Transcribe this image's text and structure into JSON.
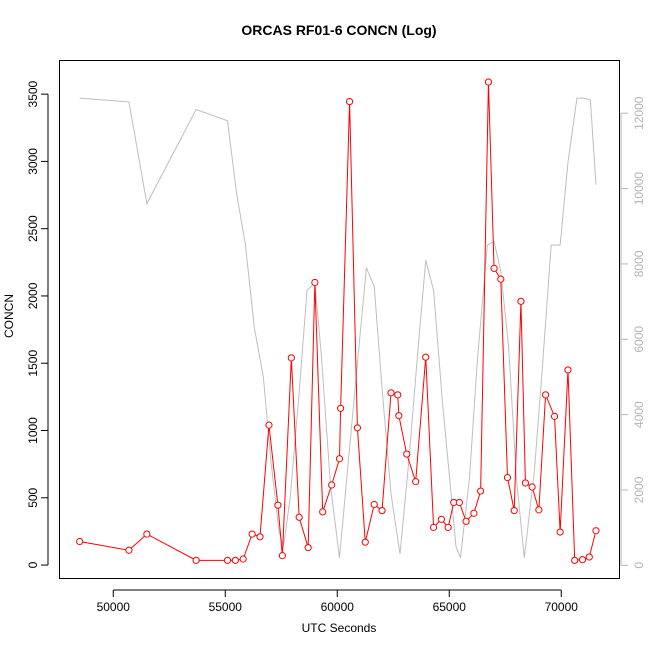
{
  "chart_data": {
    "type": "line",
    "title": "ORCAS RF01-6 CONCN (Log)",
    "xlabel": "UTC Seconds",
    "ylabel": "CONCN",
    "xlim": [
      47600,
      72600
    ],
    "ylim": [
      -100,
      3750
    ],
    "y2lim": [
      -350,
      13400
    ],
    "grid": false,
    "x_ticks": [
      50000,
      55000,
      60000,
      65000,
      70000
    ],
    "y_ticks": [
      0,
      500,
      1000,
      1500,
      2000,
      2500,
      3000,
      3500
    ],
    "y2_ticks": [
      0,
      2000,
      4000,
      6000,
      8000,
      10000,
      12000
    ],
    "colors": {
      "primary": "#ff0000",
      "secondary": "#bebebe",
      "axis": "#000000",
      "axis_right": "#b4b4b4"
    },
    "series": [
      {
        "axis": "left",
        "color": "#ff0000",
        "marker": "open-circle",
        "points": [
          [
            48500,
            175
          ],
          [
            50700,
            110
          ],
          [
            51500,
            230
          ],
          [
            53700,
            35
          ],
          [
            55100,
            35
          ],
          [
            55450,
            35
          ],
          [
            55800,
            45
          ],
          [
            56200,
            230
          ],
          [
            56550,
            210
          ],
          [
            56950,
            1040
          ],
          [
            57350,
            445
          ],
          [
            57550,
            70
          ],
          [
            57950,
            1540
          ],
          [
            58300,
            355
          ],
          [
            58700,
            130
          ],
          [
            59000,
            2100
          ],
          [
            59350,
            395
          ],
          [
            59750,
            595
          ],
          [
            60100,
            790
          ],
          [
            60150,
            1165
          ],
          [
            60550,
            3445
          ],
          [
            60900,
            1020
          ],
          [
            61250,
            170
          ],
          [
            61650,
            450
          ],
          [
            62000,
            405
          ],
          [
            62400,
            1280
          ],
          [
            62700,
            1265
          ],
          [
            62750,
            1110
          ],
          [
            63100,
            825
          ],
          [
            63500,
            620
          ],
          [
            63950,
            1545
          ],
          [
            64300,
            280
          ],
          [
            64650,
            340
          ],
          [
            64950,
            280
          ],
          [
            65200,
            465
          ],
          [
            65450,
            465
          ],
          [
            65750,
            325
          ],
          [
            66100,
            385
          ],
          [
            66400,
            550
          ],
          [
            66750,
            3590
          ],
          [
            67000,
            2205
          ],
          [
            67300,
            2125
          ],
          [
            67600,
            650
          ],
          [
            67900,
            405
          ],
          [
            68200,
            1960
          ],
          [
            68400,
            610
          ],
          [
            68700,
            580
          ],
          [
            69000,
            410
          ],
          [
            69300,
            1265
          ],
          [
            69700,
            1105
          ],
          [
            69950,
            245
          ],
          [
            70300,
            1450
          ],
          [
            70600,
            35
          ],
          [
            70950,
            40
          ],
          [
            71250,
            60
          ],
          [
            71550,
            255
          ]
        ]
      },
      {
        "axis": "right",
        "color": "#bebebe",
        "marker": "none",
        "points": [
          [
            48500,
            12400
          ],
          [
            50700,
            12300
          ],
          [
            51500,
            9600
          ],
          [
            53700,
            12100
          ],
          [
            55100,
            11800
          ],
          [
            55500,
            9900
          ],
          [
            55900,
            8500
          ],
          [
            56300,
            6300
          ],
          [
            56700,
            5000
          ],
          [
            57050,
            2700
          ],
          [
            57400,
            900
          ],
          [
            57600,
            500
          ],
          [
            57900,
            1800
          ],
          [
            58300,
            4600
          ],
          [
            58650,
            7300
          ],
          [
            59000,
            7500
          ],
          [
            59300,
            5500
          ],
          [
            59700,
            2100
          ],
          [
            60100,
            200
          ],
          [
            60500,
            2800
          ],
          [
            61000,
            6000
          ],
          [
            61300,
            7900
          ],
          [
            61650,
            7400
          ],
          [
            62000,
            4700
          ],
          [
            62400,
            1900
          ],
          [
            62800,
            300
          ],
          [
            63200,
            2800
          ],
          [
            63600,
            5700
          ],
          [
            63950,
            8100
          ],
          [
            64300,
            7300
          ],
          [
            64700,
            4300
          ],
          [
            65050,
            2100
          ],
          [
            65300,
            500
          ],
          [
            65500,
            200
          ],
          [
            65900,
            2300
          ],
          [
            66250,
            5400
          ],
          [
            66700,
            8500
          ],
          [
            67000,
            8600
          ],
          [
            67300,
            7800
          ],
          [
            67650,
            5800
          ],
          [
            68000,
            2300
          ],
          [
            68350,
            200
          ],
          [
            68800,
            2500
          ],
          [
            69150,
            5200
          ],
          [
            69550,
            8500
          ],
          [
            69950,
            8500
          ],
          [
            70300,
            10700
          ],
          [
            70700,
            12400
          ],
          [
            71000,
            12400
          ],
          [
            71300,
            12350
          ],
          [
            71550,
            10100
          ]
        ]
      }
    ]
  }
}
